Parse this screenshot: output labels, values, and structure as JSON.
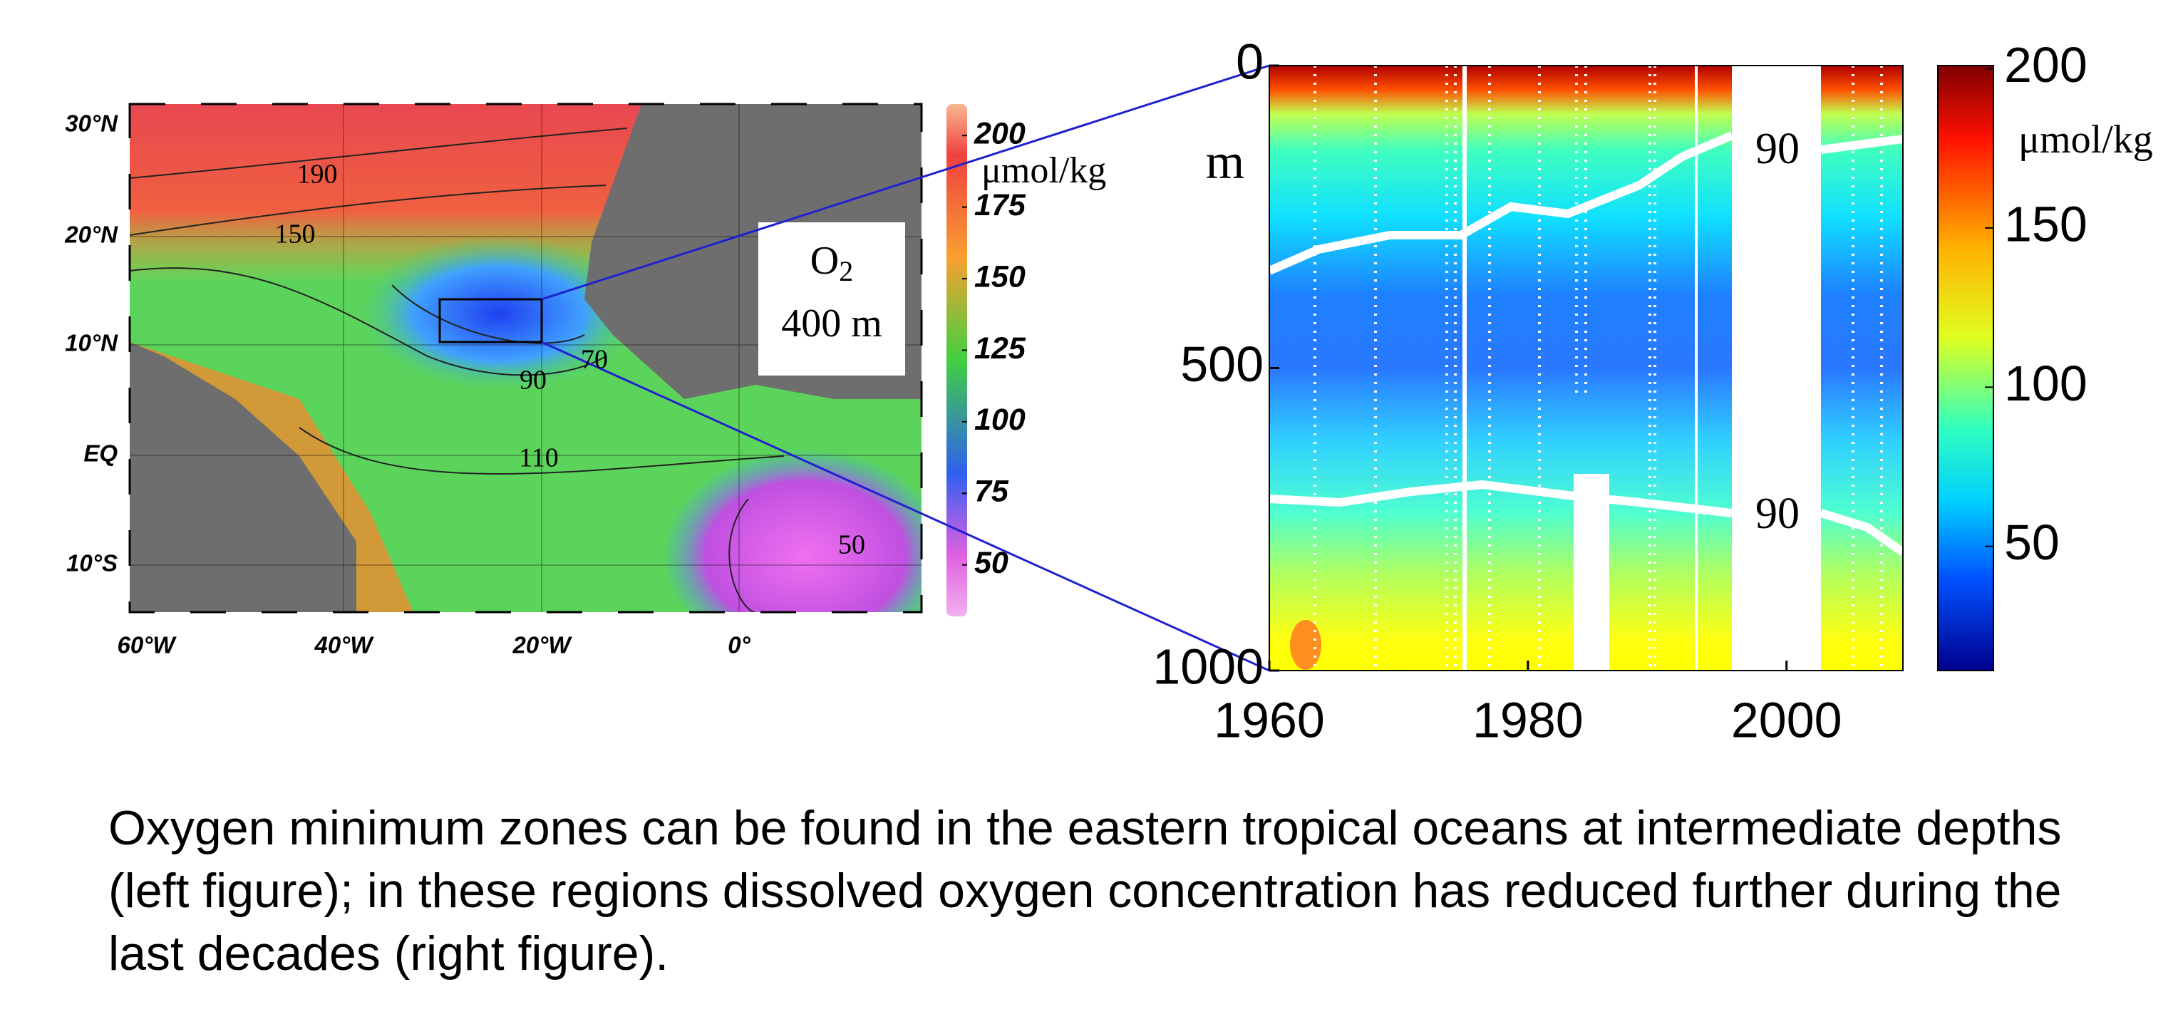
{
  "left_figure": {
    "latitude_labels": [
      "30°N",
      "20°N",
      "10°N",
      "EQ",
      "10°S"
    ],
    "longitude_labels": [
      "60°W",
      "40°W",
      "20°W",
      "0°"
    ],
    "contour_labels": [
      190,
      150,
      90,
      70,
      110,
      50
    ],
    "legend_box": {
      "species": "O",
      "subscript": "2",
      "depth": "400 m"
    },
    "colorbar": {
      "unit": "μmol/kg",
      "lim": [
        32,
        211
      ],
      "ticks": [
        200,
        175,
        150,
        125,
        100,
        75,
        50
      ]
    }
  },
  "right_figure": {
    "y_unit": "m",
    "ylim": [
      0,
      1000
    ],
    "yticks": [
      0,
      500,
      1000
    ],
    "xlim": [
      1960,
      2009
    ],
    "xticks": [
      1960,
      1980,
      2000
    ],
    "contour_labels": [
      90,
      90
    ],
    "colorbar": {
      "unit": "μmol/kg",
      "lim": [
        11,
        201
      ],
      "ticks": [
        50,
        100,
        150,
        200
      ]
    }
  },
  "caption": {
    "lines": [
      "Oxygen minimum zones can be found in the eastern tropical oceans at intermediate depths",
      "(left figure); in these regions dissolved oxygen concentration has reduced further during the",
      "last decades (right figure)."
    ]
  }
}
